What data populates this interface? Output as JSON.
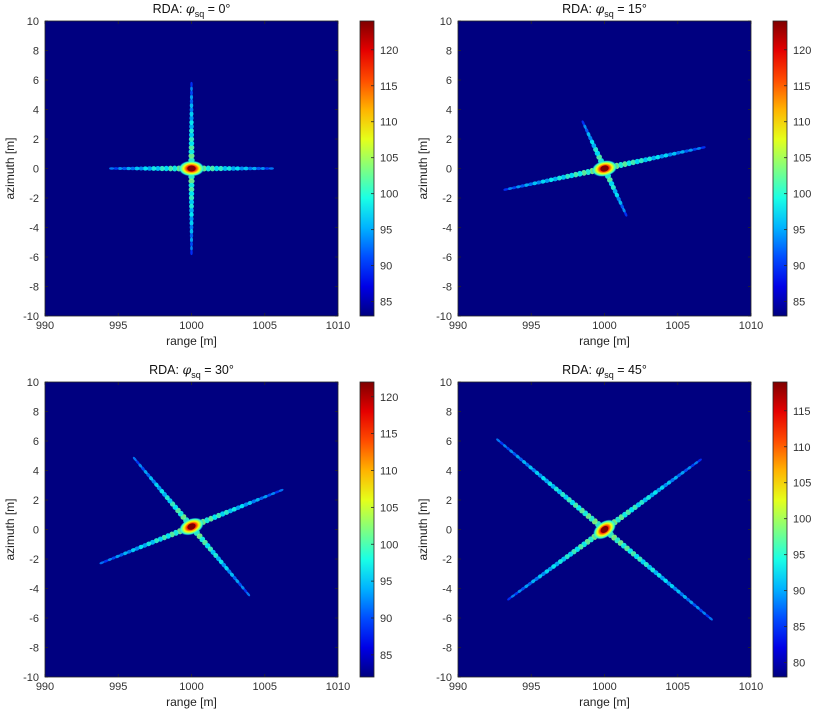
{
  "figure": {
    "colormap": "jet",
    "background_color": "#000080"
  },
  "chart_data": [
    {
      "type": "heatmap",
      "title_prefix": "RDA: ",
      "title_symbol": "φ",
      "title_subscript": "sq",
      "title_value": " = 0°",
      "xlabel": "range [m]",
      "ylabel": "azimuth [m]",
      "xlim": [
        990,
        1010
      ],
      "ylim": [
        -10,
        10
      ],
      "xticks": [
        990,
        995,
        1000,
        1005,
        1010
      ],
      "yticks": [
        10,
        8,
        6,
        4,
        2,
        0,
        -2,
        -4,
        -6,
        -8,
        -10
      ],
      "colorbar_range": [
        83,
        124
      ],
      "colorbar_ticks": [
        120,
        115,
        110,
        105,
        100,
        95,
        90,
        85
      ],
      "target": {
        "range": 1000,
        "azimuth": 0
      },
      "range_arm_angle_deg": 0,
      "range_arm_half_length_m": 5.5,
      "azimuth_arm_angle_deg": 90,
      "azimuth_arm_half_length_m": 5.8
    },
    {
      "type": "heatmap",
      "title_prefix": "RDA: ",
      "title_symbol": "φ",
      "title_subscript": "sq",
      "title_value": " = 15°",
      "xlabel": "range [m]",
      "ylabel": "azimuth [m]",
      "xlim": [
        990,
        1010
      ],
      "ylim": [
        -10,
        10
      ],
      "xticks": [
        990,
        995,
        1000,
        1005,
        1010
      ],
      "yticks": [
        10,
        8,
        6,
        4,
        2,
        0,
        -2,
        -4,
        -6,
        -8,
        -10
      ],
      "colorbar_range": [
        83,
        124
      ],
      "colorbar_ticks": [
        120,
        115,
        110,
        105,
        100,
        95,
        90,
        85
      ],
      "target": {
        "range": 1000,
        "azimuth": 0
      },
      "range_arm_angle_deg": 12,
      "range_arm_half_length_m": 7,
      "azimuth_arm_angle_deg": 115,
      "azimuth_arm_half_length_m": 3.5
    },
    {
      "type": "heatmap",
      "title_prefix": "RDA: ",
      "title_symbol": "φ",
      "title_subscript": "sq",
      "title_value": " = 30°",
      "xlabel": "range [m]",
      "ylabel": "azimuth [m]",
      "xlim": [
        990,
        1010
      ],
      "ylim": [
        -10,
        10
      ],
      "xticks": [
        990,
        995,
        1000,
        1005,
        1010
      ],
      "yticks": [
        10,
        8,
        6,
        4,
        2,
        0,
        -2,
        -4,
        -6,
        -8,
        -10
      ],
      "colorbar_range": [
        82,
        122
      ],
      "colorbar_ticks": [
        120,
        115,
        110,
        105,
        100,
        95,
        90,
        85
      ],
      "target": {
        "range": 1000,
        "azimuth": 0.2
      },
      "range_arm_angle_deg": 22,
      "range_arm_half_length_m": 6.5,
      "azimuth_arm_angle_deg": 130,
      "azimuth_arm_half_length_m": 6
    },
    {
      "type": "heatmap",
      "title_prefix": "RDA: ",
      "title_symbol": "φ",
      "title_subscript": "sq",
      "title_value": " = 45°",
      "xlabel": "range [m]",
      "ylabel": "azimuth [m]",
      "xlim": [
        990,
        1010
      ],
      "ylim": [
        -10,
        10
      ],
      "xticks": [
        990,
        995,
        1000,
        1005,
        1010
      ],
      "yticks": [
        10,
        8,
        6,
        4,
        2,
        0,
        -2,
        -4,
        -6,
        -8,
        -10
      ],
      "colorbar_range": [
        78,
        119
      ],
      "colorbar_ticks": [
        115,
        110,
        105,
        100,
        95,
        90,
        85,
        80
      ],
      "target": {
        "range": 1000,
        "azimuth": 0
      },
      "range_arm_angle_deg": 36,
      "range_arm_half_length_m": 8,
      "azimuth_arm_angle_deg": 140,
      "azimuth_arm_half_length_m": 9.5
    }
  ]
}
